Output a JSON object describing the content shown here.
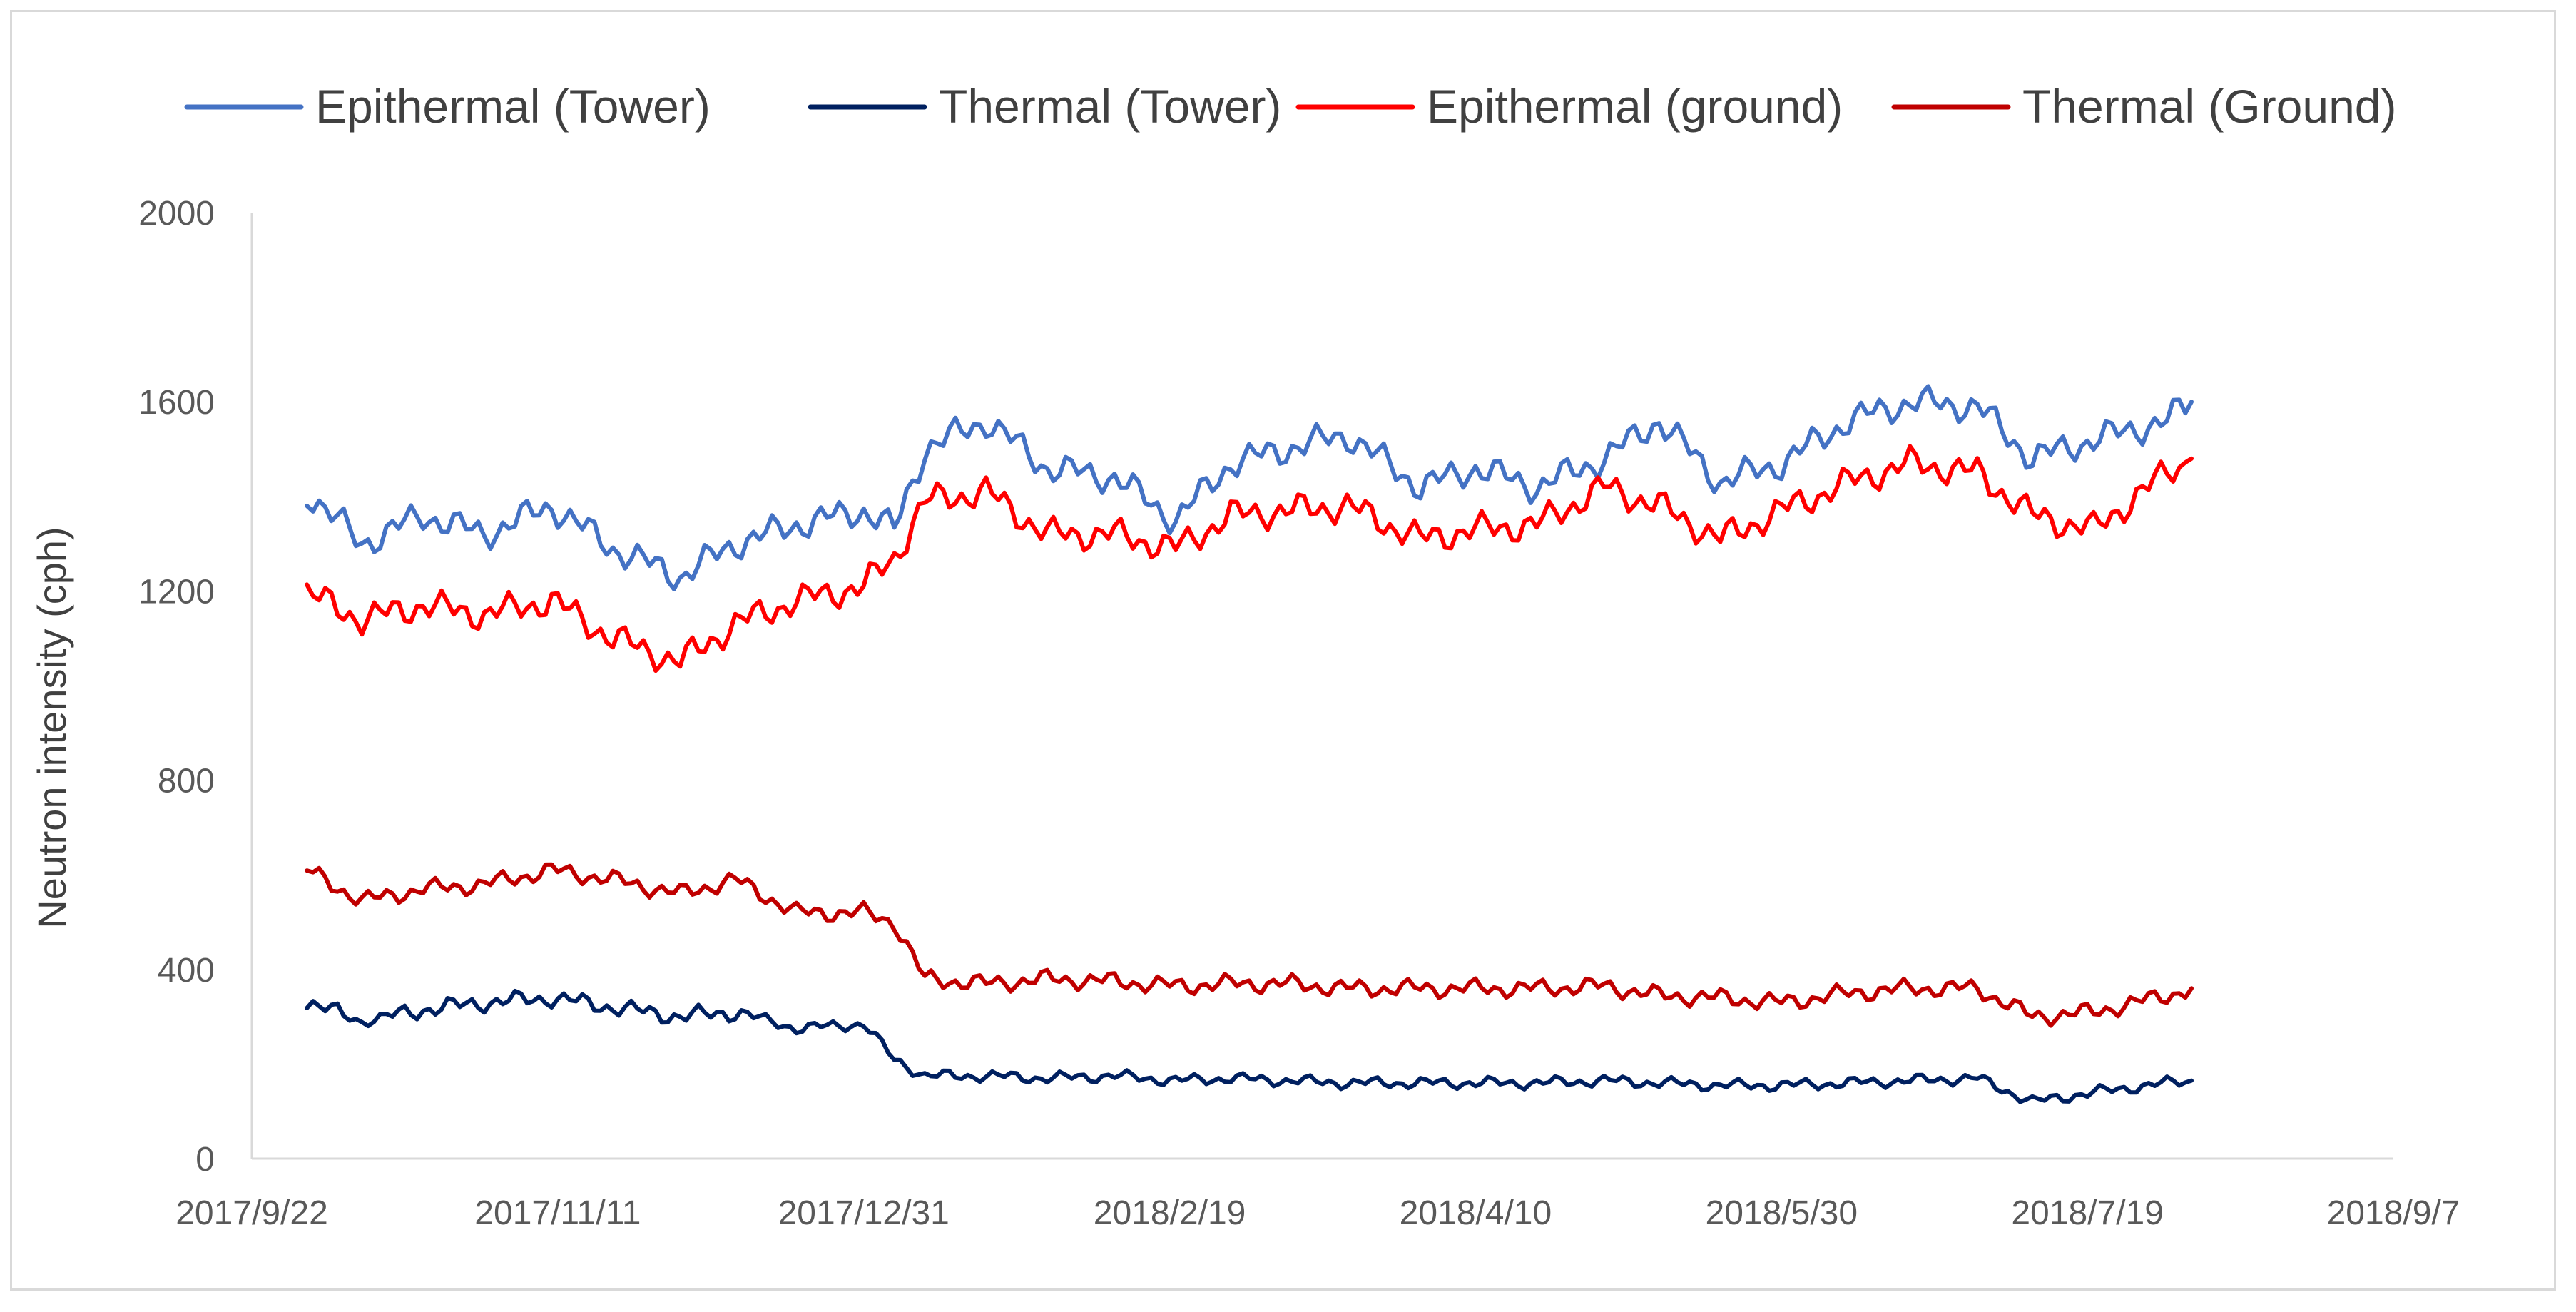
{
  "chart_data": {
    "type": "line",
    "title": "",
    "xlabel": "",
    "ylabel": "Neutron intensity (cph)",
    "ylim": [
      0,
      2000
    ],
    "yticks": [
      0,
      400,
      800,
      1200,
      1600,
      2000
    ],
    "ytick_labels": [
      "0",
      "400",
      "800",
      "1200",
      "1600",
      "2000"
    ],
    "xlim": [
      "2017-09-22",
      "2018-09-07"
    ],
    "xticks": [
      "2017-09-22",
      "2017-11-11",
      "2017-12-31",
      "2018-02-19",
      "2018-04-10",
      "2018-05-30",
      "2018-07-19",
      "2018-09-07"
    ],
    "xtick_labels": [
      "2017/9/22",
      "2017/11/11",
      "2017/12/31",
      "2018/2/19",
      "2018/4/10",
      "2018/5/30",
      "2018/7/19",
      "2018/9/7"
    ],
    "legend_position": "top",
    "grid": false,
    "x": [
      "2017-10-01",
      "2017-10-10",
      "2017-10-20",
      "2017-10-30",
      "2017-11-10",
      "2017-11-20",
      "2017-12-01",
      "2017-12-10",
      "2017-12-20",
      "2017-12-31",
      "2018-01-05",
      "2018-01-10",
      "2018-01-20",
      "2018-01-30",
      "2018-02-10",
      "2018-02-20",
      "2018-03-01",
      "2018-03-10",
      "2018-03-20",
      "2018-04-01",
      "2018-04-10",
      "2018-04-20",
      "2018-05-01",
      "2018-05-10",
      "2018-05-20",
      "2018-05-30",
      "2018-06-10",
      "2018-06-20",
      "2018-07-01",
      "2018-07-10",
      "2018-07-20",
      "2018-08-01",
      "2018-08-05"
    ],
    "series": [
      {
        "name": "Epithermal (Tower)",
        "color": "#4472c4",
        "values": [
          1410,
          1300,
          1360,
          1320,
          1380,
          1290,
          1230,
          1300,
          1340,
          1370,
          1330,
          1500,
          1560,
          1460,
          1440,
          1350,
          1470,
          1500,
          1530,
          1420,
          1460,
          1420,
          1480,
          1560,
          1430,
          1470,
          1560,
          1600,
          1590,
          1480,
          1520,
          1560,
          1600
        ]
      },
      {
        "name": "Thermal (Tower)",
        "color": "#002060",
        "values": [
          330,
          290,
          315,
          330,
          340,
          320,
          300,
          310,
          275,
          285,
          210,
          175,
          175,
          170,
          175,
          165,
          170,
          165,
          160,
          160,
          160,
          160,
          165,
          160,
          155,
          155,
          160,
          165,
          170,
          120,
          140,
          160,
          165
        ]
      },
      {
        "name": "Epithermal (ground)",
        "color": "#ff0000",
        "values": [
          1195,
          1140,
          1170,
          1150,
          1180,
          1100,
          1050,
          1130,
          1180,
          1210,
          1270,
          1390,
          1410,
          1320,
          1320,
          1290,
          1360,
          1370,
          1380,
          1310,
          1330,
          1340,
          1420,
          1380,
          1310,
          1370,
          1430,
          1470,
          1450,
          1360,
          1330,
          1450,
          1480
        ]
      },
      {
        "name": "Thermal (Ground)",
        "color": "#c00000",
        "values": [
          610,
          545,
          570,
          580,
          610,
          590,
          560,
          590,
          520,
          520,
          500,
          380,
          370,
          380,
          375,
          365,
          370,
          370,
          360,
          360,
          360,
          360,
          365,
          345,
          340,
          330,
          350,
          360,
          360,
          300,
          310,
          345,
          360
        ]
      }
    ]
  }
}
